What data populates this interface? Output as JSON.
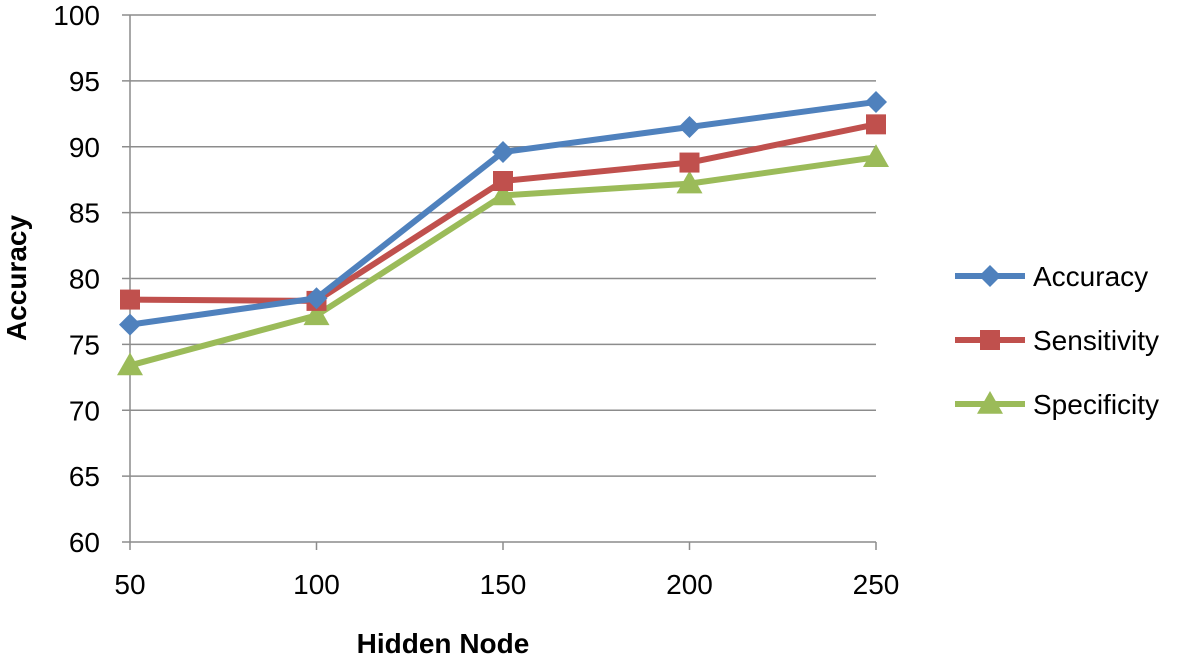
{
  "chart_data": {
    "type": "line",
    "xlabel": "Hidden Node",
    "ylabel": "Accuracy",
    "categories": [
      "50",
      "100",
      "150",
      "200",
      "250"
    ],
    "yticks": [
      "60",
      "65",
      "70",
      "75",
      "80",
      "85",
      "90",
      "95",
      "100"
    ],
    "ylim": [
      60,
      100
    ],
    "grid": true,
    "legend_position": "right",
    "series": [
      {
        "name": "Accuracy",
        "color": "#4F81BD",
        "marker": "diamond",
        "values": [
          76.5,
          78.5,
          89.6,
          91.5,
          93.4
        ]
      },
      {
        "name": "Sensitivity",
        "color": "#C0504D",
        "marker": "square",
        "values": [
          78.4,
          78.3,
          87.4,
          88.8,
          91.7
        ]
      },
      {
        "name": "Specificity",
        "color": "#9BBB59",
        "marker": "triangle",
        "values": [
          73.4,
          77.2,
          86.3,
          87.2,
          89.2
        ]
      }
    ]
  }
}
